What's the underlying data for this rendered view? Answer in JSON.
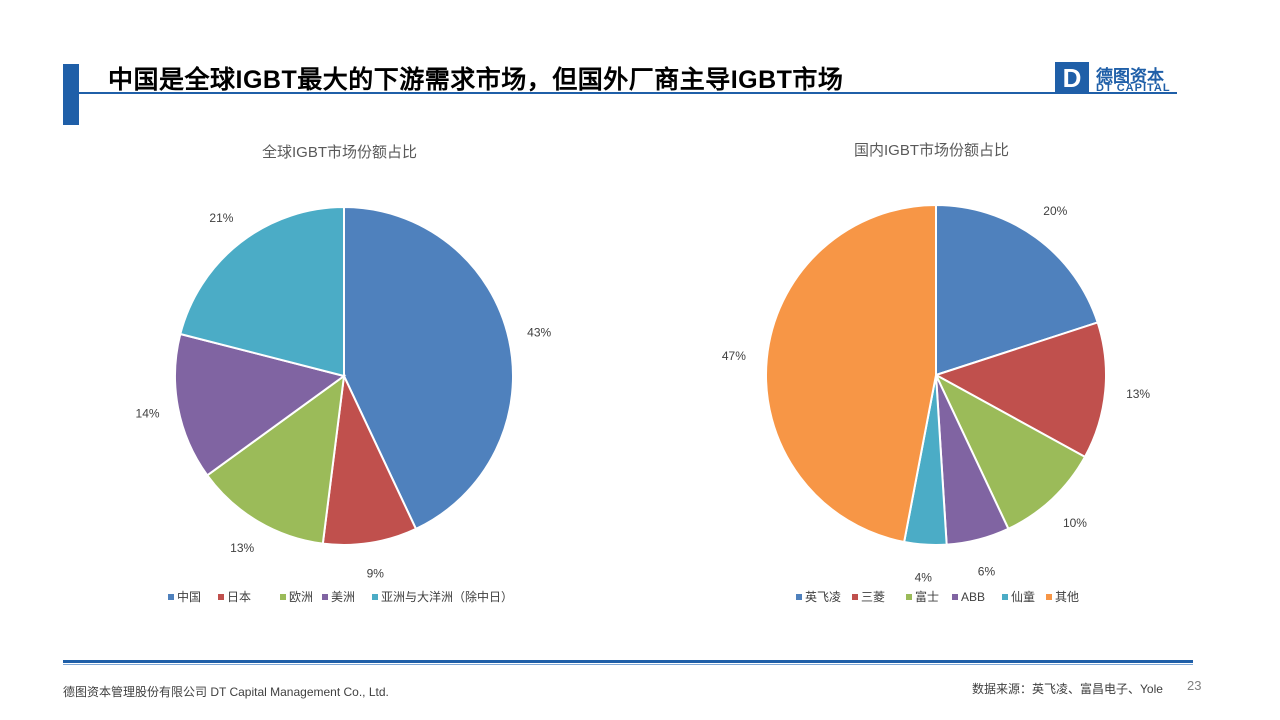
{
  "header": {
    "title": "中国是全球IGBT最大的下游需求市场，但国外厂商主导IGBT市场",
    "logo_letter": "D",
    "logo_cn": "德图资本",
    "logo_en": "DT CAPITAL"
  },
  "colors": {
    "brand": "#1f5fa8"
  },
  "chart_data": [
    {
      "type": "pie",
      "title": "全球IGBT市场份额占比",
      "legend_position": "bottom",
      "categories": [
        "中国",
        "日本",
        "欧洲",
        "美洲",
        "亚洲与大洋洲（除中日）"
      ],
      "values": [
        43,
        9,
        13,
        14,
        21
      ],
      "labels": [
        "43%",
        "9%",
        "13%",
        "14%",
        "21%"
      ],
      "colors": [
        "#4f81bd",
        "#c0504d",
        "#9bbb59",
        "#8064a2",
        "#4bacc6"
      ]
    },
    {
      "type": "pie",
      "title": "国内IGBT市场份额占比",
      "legend_position": "bottom",
      "categories": [
        "英飞凌",
        "三菱",
        "富士",
        "ABB",
        "仙童",
        "其他"
      ],
      "values": [
        20,
        13,
        10,
        6,
        4,
        47
      ],
      "labels": [
        "20%",
        "13%",
        "10%",
        "6%",
        "4%",
        "47%"
      ],
      "colors": [
        "#4f81bd",
        "#c0504d",
        "#9bbb59",
        "#8064a2",
        "#4bacc6",
        "#f79646"
      ]
    }
  ],
  "footer": {
    "company": "德图资本管理股份有限公司  DT Capital Management Co.,   Ltd.",
    "source": "数据来源：英飞凌、富昌电子、Yole",
    "page_number": "23"
  }
}
